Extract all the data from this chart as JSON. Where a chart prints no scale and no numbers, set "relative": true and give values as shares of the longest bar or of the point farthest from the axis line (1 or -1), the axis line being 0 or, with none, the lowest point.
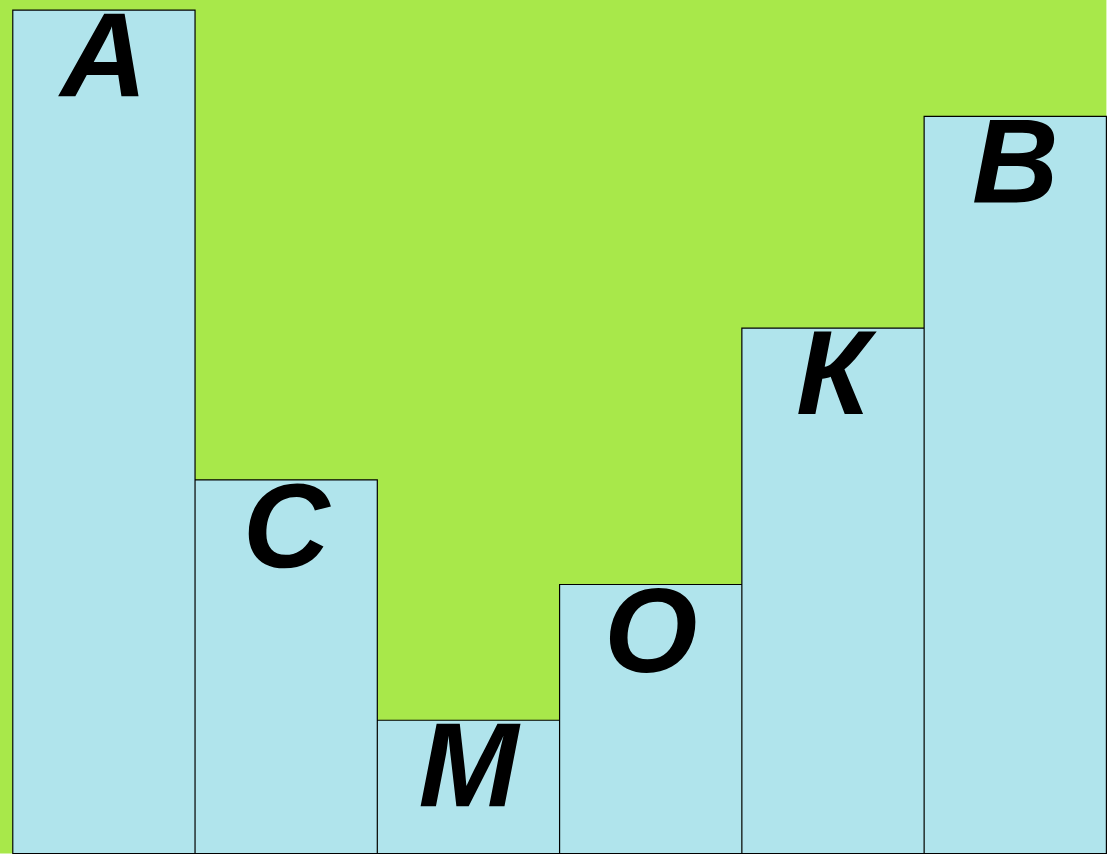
{
  "chart_data": {
    "type": "bar",
    "relative": true,
    "categories": [
      "А",
      "С",
      "М",
      "О",
      "К",
      "В"
    ],
    "values": [
      1,
      0.443,
      0.158,
      0.319,
      0.623,
      0.874
    ],
    "color": "#b0e4ec"
  }
}
